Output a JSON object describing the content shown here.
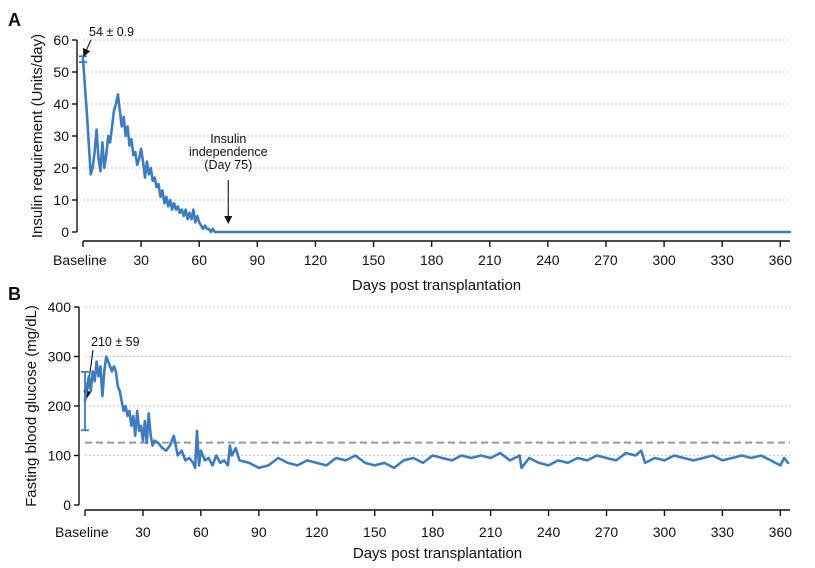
{
  "chart_data": [
    {
      "type": "line",
      "panel_label": "A",
      "xlabel": "Days post transplantation",
      "ylabel": "Insulin requirement (Units/day)",
      "xlim": [
        0,
        365
      ],
      "ylim": [
        0,
        60
      ],
      "x_ticks": [
        0,
        30,
        60,
        90,
        120,
        150,
        180,
        210,
        240,
        270,
        300,
        330,
        360
      ],
      "x_tick_labels": [
        "Baseline",
        "30",
        "60",
        "90",
        "120",
        "150",
        "180",
        "210",
        "240",
        "270",
        "300",
        "330",
        "360"
      ],
      "y_ticks": [
        0,
        10,
        20,
        30,
        40,
        50,
        60
      ],
      "y_tick_labels": [
        "0",
        "10",
        "20",
        "30",
        "40",
        "50",
        "60"
      ],
      "grid": "horizontal-dotted",
      "line_color": "#3d7cc0",
      "baseline": {
        "value": 54,
        "error": 0.9,
        "label": "54 ± 0.9"
      },
      "annotations": [
        {
          "lines": [
            "Insulin",
            "independence",
            "(Day 75)"
          ],
          "x": 75,
          "y": 0
        }
      ],
      "series": [
        {
          "x": [
            0,
            2,
            4,
            5,
            6,
            7,
            8,
            9,
            10,
            11,
            12,
            13,
            14,
            15,
            16,
            17,
            18,
            19,
            20,
            21,
            22,
            23,
            24,
            25,
            26,
            27,
            28,
            29,
            30,
            31,
            32,
            33,
            34,
            35,
            36,
            37,
            38,
            39,
            40,
            41,
            42,
            43,
            44,
            45,
            46,
            47,
            48,
            49,
            50,
            51,
            52,
            53,
            54,
            55,
            56,
            57,
            58,
            59,
            60,
            61,
            62,
            63,
            64,
            65,
            66,
            67,
            68,
            69,
            70,
            71,
            72,
            73,
            74,
            75,
            80,
            100,
            150,
            200,
            250,
            300,
            350,
            365
          ],
          "y": [
            54,
            37,
            18,
            20,
            25,
            32,
            23,
            19,
            28,
            20,
            24,
            30,
            28,
            33,
            38,
            40,
            43,
            38,
            33,
            36,
            30,
            33,
            27,
            29,
            24,
            25,
            21,
            23,
            26,
            22,
            17,
            22,
            18,
            20,
            16,
            17,
            14,
            15,
            11,
            13,
            9,
            11,
            8,
            10,
            7,
            9,
            7,
            8,
            6,
            7,
            5,
            7,
            4,
            6,
            4,
            7,
            3,
            5,
            3,
            2,
            1,
            2,
            1,
            1,
            0,
            1,
            0,
            0,
            0,
            0,
            0,
            0,
            0,
            0,
            0,
            0,
            0,
            0,
            0,
            0,
            0,
            0
          ]
        }
      ]
    },
    {
      "type": "line",
      "panel_label": "B",
      "xlabel": "Days post transplantation",
      "ylabel": "Fasting blood glucose (mg/dL)",
      "xlim": [
        0,
        365
      ],
      "ylim": [
        0,
        400
      ],
      "x_ticks": [
        0,
        30,
        60,
        90,
        120,
        150,
        180,
        210,
        240,
        270,
        300,
        330,
        360
      ],
      "x_tick_labels": [
        "Baseline",
        "30",
        "60",
        "90",
        "120",
        "150",
        "180",
        "210",
        "240",
        "270",
        "300",
        "330",
        "360"
      ],
      "y_ticks": [
        0,
        100,
        200,
        300,
        400
      ],
      "y_tick_labels": [
        "0",
        "100",
        "200",
        "300",
        "400"
      ],
      "grid": "horizontal-dotted",
      "line_color": "#3d7cc0",
      "reference_line": {
        "value": 126,
        "style": "dashed",
        "color": "#999999"
      },
      "baseline": {
        "value": 210,
        "error": 59,
        "label": "210 ± 59"
      },
      "series": [
        {
          "x": [
            0,
            1,
            2,
            3,
            4,
            5,
            6,
            7,
            8,
            9,
            10,
            11,
            12,
            13,
            14,
            15,
            16,
            17,
            18,
            19,
            20,
            21,
            22,
            23,
            24,
            25,
            26,
            27,
            28,
            29,
            30,
            31,
            32,
            33,
            34,
            35,
            36,
            38,
            40,
            42,
            44,
            46,
            48,
            50,
            52,
            54,
            56,
            57,
            58,
            59,
            60,
            62,
            64,
            66,
            68,
            70,
            72,
            74,
            75,
            76,
            78,
            80,
            85,
            90,
            95,
            100,
            105,
            110,
            115,
            120,
            125,
            130,
            135,
            140,
            145,
            150,
            155,
            160,
            165,
            170,
            175,
            180,
            185,
            190,
            195,
            200,
            205,
            210,
            215,
            220,
            225,
            226,
            230,
            235,
            240,
            245,
            250,
            255,
            260,
            265,
            270,
            275,
            280,
            285,
            288,
            290,
            295,
            300,
            305,
            310,
            315,
            320,
            325,
            330,
            335,
            340,
            345,
            350,
            355,
            360,
            362,
            364
          ],
          "y": [
            210,
            240,
            260,
            230,
            270,
            250,
            290,
            260,
            280,
            220,
            270,
            300,
            290,
            280,
            270,
            280,
            270,
            240,
            230,
            210,
            190,
            200,
            180,
            190,
            160,
            180,
            140,
            190,
            150,
            160,
            130,
            170,
            125,
            185,
            140,
            120,
            130,
            125,
            115,
            110,
            120,
            140,
            100,
            110,
            90,
            95,
            85,
            75,
            150,
            80,
            110,
            90,
            95,
            80,
            100,
            85,
            90,
            80,
            120,
            100,
            115,
            90,
            85,
            75,
            80,
            95,
            85,
            80,
            90,
            85,
            80,
            95,
            90,
            100,
            85,
            80,
            85,
            75,
            90,
            95,
            85,
            100,
            95,
            90,
            100,
            95,
            100,
            95,
            105,
            90,
            100,
            75,
            95,
            85,
            80,
            90,
            85,
            95,
            90,
            100,
            95,
            90,
            105,
            100,
            110,
            85,
            95,
            90,
            100,
            95,
            90,
            95,
            100,
            90,
            95,
            100,
            95,
            100,
            90,
            80,
            95,
            85
          ]
        }
      ]
    }
  ]
}
